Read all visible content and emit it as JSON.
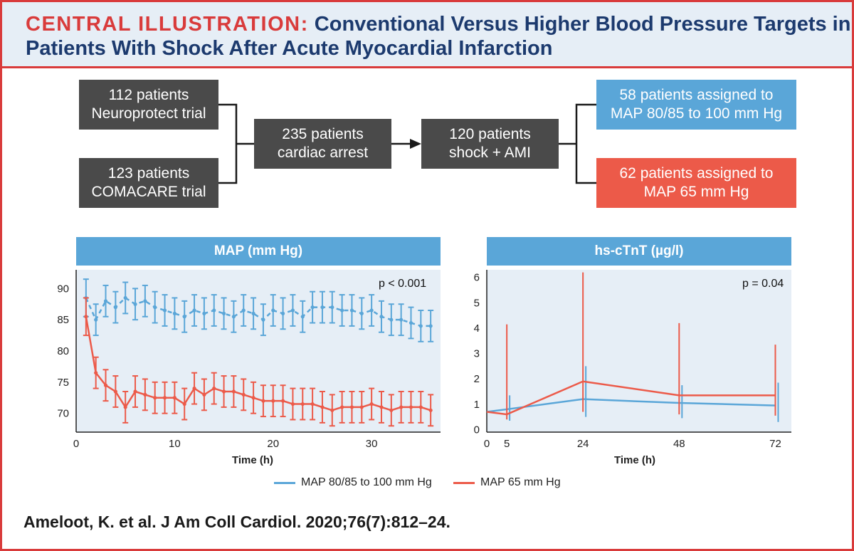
{
  "header": {
    "title_lead": "CENTRAL ILLUSTRATION:",
    "title_rest": "Conventional Versus Higher Blood Pressure Targets in Patients With Shock After Acute Myocardial Infarction"
  },
  "flow": {
    "neuroprotect": {
      "line1": "112 patients",
      "line2": "Neuroprotect trial"
    },
    "comacare": {
      "line1": "123 patients",
      "line2": "COMACARE trial"
    },
    "cardiac_arrest": {
      "line1": "235 patients",
      "line2": "cardiac arrest"
    },
    "shock_ami": {
      "line1": "120 patients",
      "line2": "shock + AMI"
    },
    "high_map": {
      "line1": "58 patients assigned to",
      "line2": "MAP 80/85 to 100 mm Hg"
    },
    "low_map": {
      "line1": "62 patients assigned to",
      "line2": "MAP 65 mm Hg"
    }
  },
  "colors": {
    "blue": "#5aa6d8",
    "red": "#ec5a49",
    "dark": "#4a4a4a",
    "accent": "#d93b3b",
    "navy": "#1c3a6e"
  },
  "legend": {
    "blue_label": "MAP 80/85 to 100 mm Hg",
    "red_label": "MAP 65 mm Hg"
  },
  "citation": "Ameloot, K. et al. J Am Coll Cardiol. 2020;76(7):812–24.",
  "chart_data": [
    {
      "type": "line",
      "title": "MAP (mm Hg)",
      "xlabel": "Time (h)",
      "ylabel": "",
      "annotation": "p < 0.001",
      "xlim": [
        0,
        37
      ],
      "ylim": [
        67,
        93
      ],
      "xticks": [
        0,
        10,
        20,
        30
      ],
      "yticks": [
        70,
        75,
        80,
        85,
        90
      ],
      "x": [
        1,
        2,
        3,
        4,
        5,
        6,
        7,
        8,
        9,
        10,
        11,
        12,
        13,
        14,
        15,
        16,
        17,
        18,
        19,
        20,
        21,
        22,
        23,
        24,
        25,
        26,
        27,
        28,
        29,
        30,
        31,
        32,
        33,
        34,
        35,
        36
      ],
      "series": [
        {
          "name": "MAP 80/85 to 100 mm Hg",
          "color": "#5aa6d8",
          "dashed": true,
          "values": [
            88.5,
            85,
            88,
            87,
            88.5,
            87.5,
            88,
            87,
            86.5,
            86,
            85.5,
            86.5,
            86,
            86.5,
            86,
            85.5,
            86.5,
            86,
            85,
            86.5,
            86,
            86.5,
            85.5,
            87,
            87,
            87,
            86.5,
            86.5,
            86,
            86.5,
            85.5,
            85,
            85,
            84.5,
            84,
            84
          ],
          "error": [
            3,
            2.5,
            2.5,
            2.5,
            2.5,
            2.5,
            2.5,
            2.5,
            2.5,
            2.5,
            2.5,
            2.5,
            2.5,
            2.5,
            2.5,
            2.5,
            2.5,
            2.5,
            2.5,
            2.5,
            2.5,
            2.5,
            2.5,
            2.5,
            2.5,
            2.5,
            2.5,
            2.5,
            2.5,
            2.5,
            2.5,
            2.5,
            2.5,
            2.5,
            2.5,
            2.5
          ]
        },
        {
          "name": "MAP 65 mm Hg",
          "color": "#ec5a49",
          "dashed": false,
          "values": [
            85.5,
            76.5,
            74.5,
            73.5,
            71,
            73.5,
            73,
            72.5,
            72.5,
            72.5,
            71.5,
            74,
            73,
            74,
            73.5,
            73.5,
            73,
            72.5,
            72,
            72,
            72,
            71.5,
            71.5,
            71.5,
            71,
            70.5,
            71,
            71,
            71,
            71.5,
            71,
            70.5,
            71,
            71,
            71,
            70.5
          ],
          "error": [
            3,
            2.5,
            2.5,
            2.5,
            2.5,
            2.5,
            2.5,
            2.5,
            2.5,
            2.5,
            2.5,
            2.5,
            2.5,
            2.5,
            2.5,
            2.5,
            2.5,
            2.5,
            2.5,
            2.5,
            2.5,
            2.5,
            2.5,
            2.5,
            2.5,
            2.5,
            2.5,
            2.5,
            2.5,
            2.5,
            2.5,
            2.5,
            2.5,
            2.5,
            2.5,
            2.5
          ]
        }
      ]
    },
    {
      "type": "line",
      "title": "hs-cTnT (µg/l)",
      "xlabel": "Time (h)",
      "ylabel": "",
      "annotation": "p = 0.04",
      "xlim": [
        0,
        76
      ],
      "ylim": [
        -0.1,
        6.3
      ],
      "xticks": [
        0,
        5,
        24,
        48,
        72
      ],
      "yticks": [
        0,
        1,
        2,
        3,
        4,
        5,
        6
      ],
      "series": [
        {
          "name": "MAP 80/85 to 100 mm Hg",
          "color": "#5aa6d8",
          "x": [
            0,
            5,
            24,
            48,
            72
          ],
          "values": [
            0.7,
            0.8,
            1.2,
            1.05,
            0.95
          ],
          "low": [
            null,
            0.35,
            0.5,
            0.45,
            0.3
          ],
          "high": [
            null,
            1.35,
            2.5,
            1.75,
            1.85
          ]
        },
        {
          "name": "MAP 65 mm Hg",
          "color": "#ec5a49",
          "x": [
            0,
            5,
            24,
            48,
            72
          ],
          "values": [
            0.7,
            0.6,
            1.9,
            1.35,
            1.35
          ],
          "low": [
            null,
            0.4,
            0.7,
            0.6,
            0.55
          ],
          "high": [
            null,
            4.15,
            6.2,
            4.2,
            3.35
          ]
        }
      ]
    }
  ]
}
